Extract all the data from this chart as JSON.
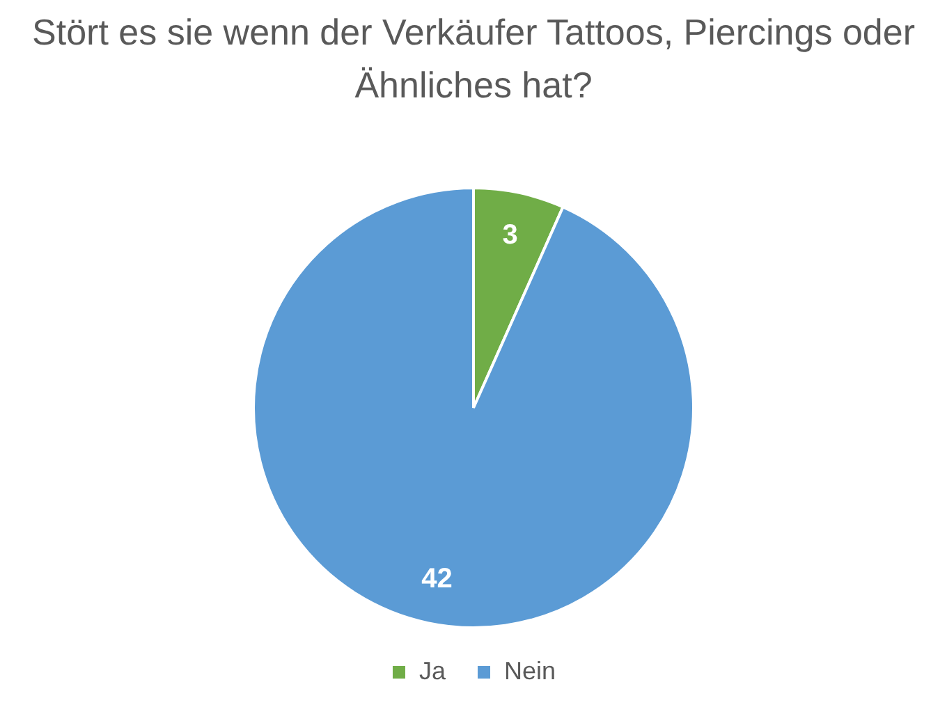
{
  "chart_data": {
    "type": "pie",
    "title": "Stört es sie wenn der Verkäufer Tattoos, Piercings oder Ähnliches hat?",
    "categories": [
      "Ja",
      "Nein"
    ],
    "values": [
      3,
      42
    ],
    "colors": [
      "#70ad47",
      "#5b9bd5"
    ],
    "data_labels": true,
    "legend": "bottom"
  }
}
